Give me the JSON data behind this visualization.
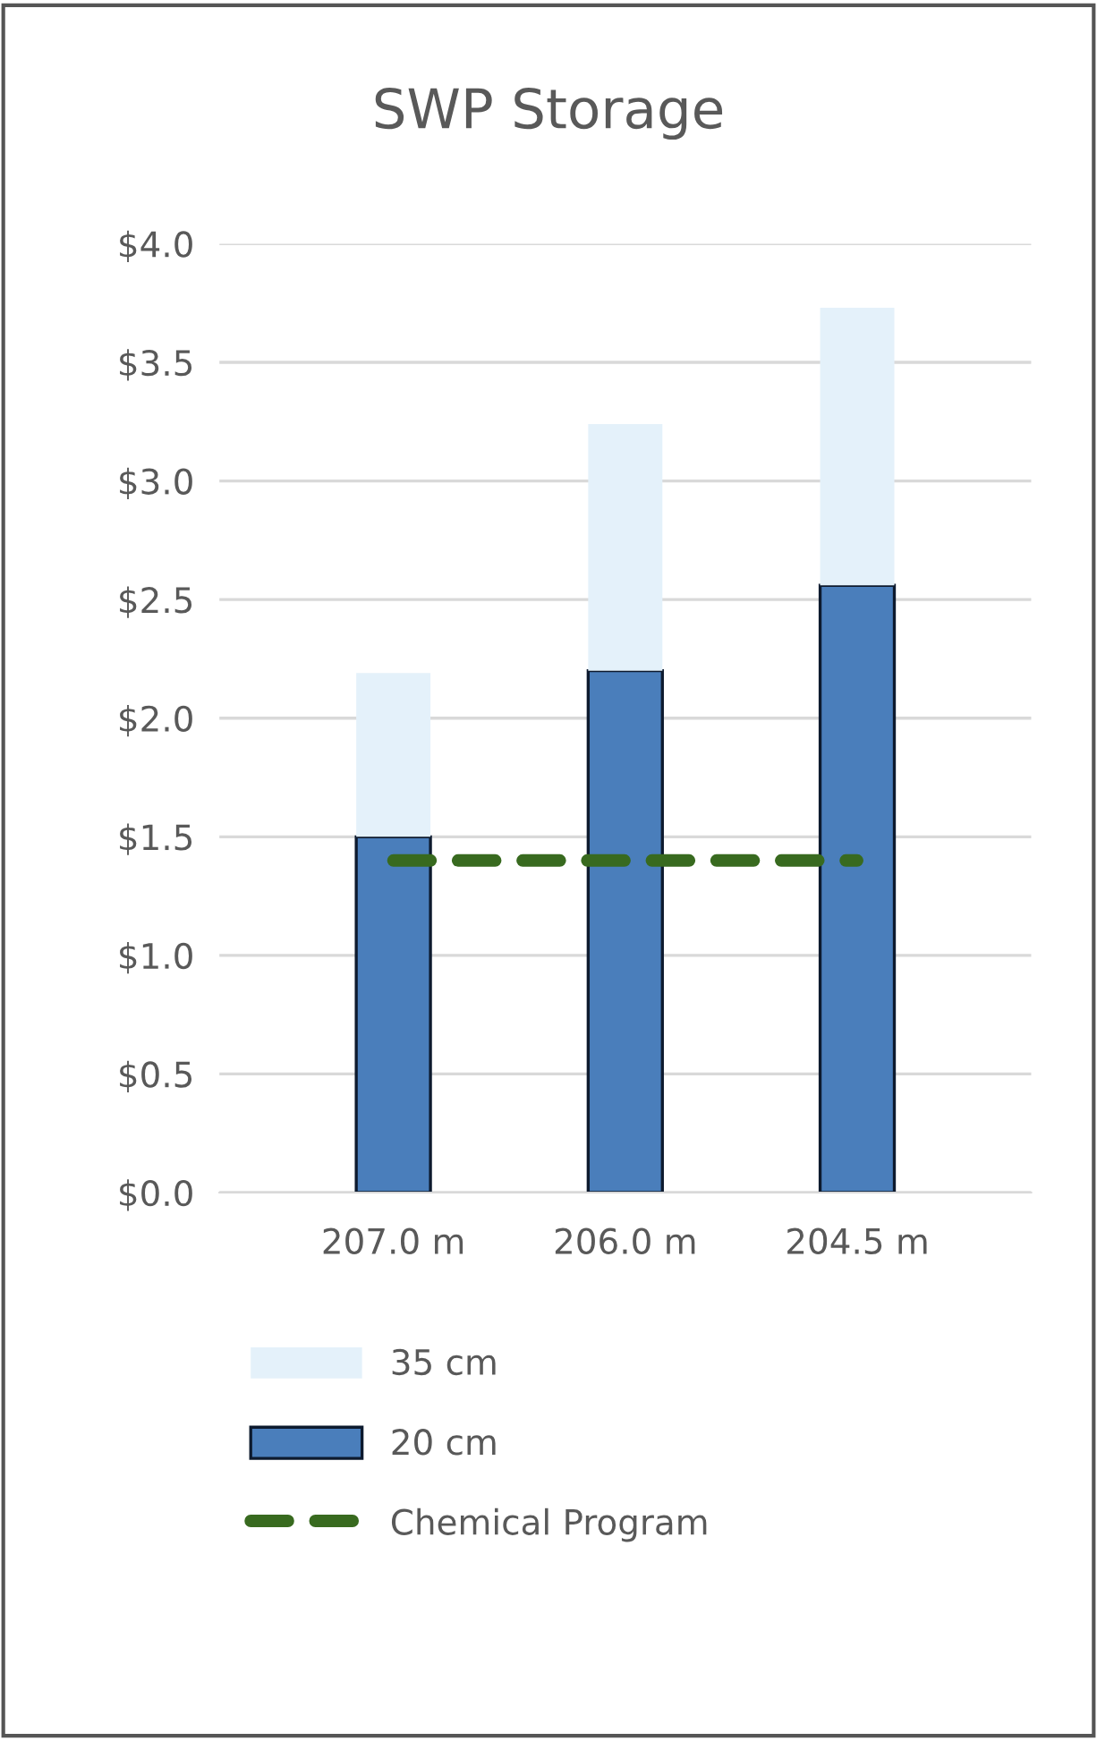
{
  "chart_data": {
    "type": "bar",
    "title": "SWP Storage",
    "stacked": true,
    "categories": [
      "207.0 m",
      "206.0 m",
      "204.5 m"
    ],
    "series": [
      {
        "name": "20 cm",
        "color": "#4a7ebb",
        "values": [
          1.5,
          2.2,
          2.56
        ]
      },
      {
        "name": "35 cm",
        "color": "#e4f1fa",
        "values": [
          0.69,
          1.04,
          1.17
        ]
      },
      {
        "name": "Chemical Program",
        "type": "line",
        "color": "#386a1f",
        "line_style": "dashed",
        "values": [
          1.4,
          1.4,
          1.4
        ]
      }
    ],
    "ylim": [
      0,
      4.0
    ],
    "yticks": [
      {
        "value": 0,
        "label": "$0.0"
      },
      {
        "value": 0.5,
        "label": "$0.5"
      },
      {
        "value": 1.0,
        "label": "$1.0"
      },
      {
        "value": 1.5,
        "label": "$1.5"
      },
      {
        "value": 2.0,
        "label": "$2.0"
      },
      {
        "value": 2.5,
        "label": "$2.5"
      },
      {
        "value": 3.0,
        "label": "$3.0"
      },
      {
        "value": 3.5,
        "label": "$3.5"
      },
      {
        "value": 4.0,
        "label": "$4.0"
      }
    ],
    "grid": "y",
    "legend": "bottom"
  }
}
